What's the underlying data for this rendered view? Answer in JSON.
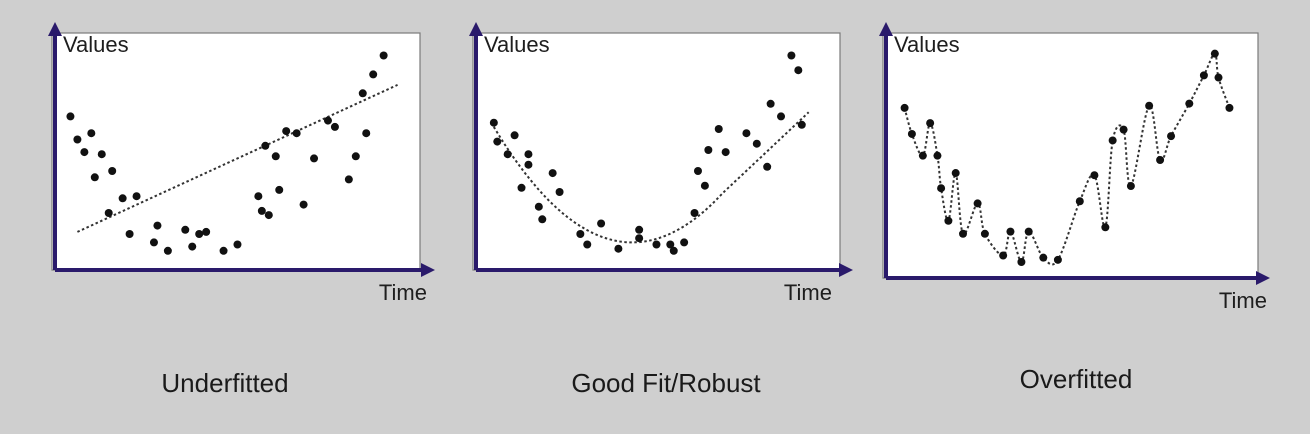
{
  "colors": {
    "background": "#cfcfcf",
    "plot_background": "#ffffff",
    "axis": "#2a1a6b",
    "points": "#111111",
    "fit_line": "#333333"
  },
  "chart_data": [
    {
      "type": "scatter",
      "title": "Underfitted",
      "xlabel": "Time",
      "ylabel": "Values",
      "xlim": [
        0,
        100
      ],
      "ylim": [
        0,
        100
      ],
      "grid": false,
      "fit": {
        "style": "linear",
        "x": [
          5,
          97
        ],
        "y": [
          11,
          81
        ]
      },
      "points": {
        "x": [
          3,
          5,
          7,
          9,
          10,
          12,
          14,
          15,
          18,
          20,
          22,
          27,
          28,
          31,
          36,
          38,
          40,
          42,
          47,
          51,
          57,
          58,
          59,
          60,
          62,
          63,
          65,
          68,
          70,
          73,
          77,
          79,
          83,
          85,
          87,
          88,
          90,
          93
        ],
        "y": [
          66,
          55,
          49,
          58,
          37,
          48,
          20,
          40,
          27,
          10,
          28,
          6,
          14,
          2,
          12,
          4,
          10,
          11,
          2,
          5,
          28,
          21,
          52,
          19,
          47,
          31,
          59,
          58,
          24,
          46,
          64,
          61,
          36,
          47,
          77,
          58,
          86,
          95
        ]
      }
    },
    {
      "type": "scatter",
      "title": "Good Fit/Robust",
      "xlabel": "Time",
      "ylabel": "Values",
      "xlim": [
        0,
        100
      ],
      "ylim": [
        0,
        100
      ],
      "grid": false,
      "fit": {
        "style": "curve"
      },
      "points": {
        "x": [
          4,
          5,
          8,
          10,
          12,
          14,
          14,
          17,
          18,
          21,
          23,
          29,
          31,
          35,
          40,
          46,
          46,
          51,
          55,
          56,
          59,
          62,
          63,
          65,
          66,
          69,
          71,
          77,
          80,
          83,
          84,
          87,
          90,
          92,
          93
        ],
        "y": [
          63,
          54,
          48,
          57,
          32,
          48,
          43,
          23,
          17,
          39,
          30,
          10,
          5,
          15,
          3,
          8,
          12,
          5,
          5,
          2,
          6,
          20,
          40,
          33,
          50,
          60,
          49,
          58,
          53,
          42,
          72,
          66,
          95,
          88,
          62
        ]
      }
    },
    {
      "type": "scatter",
      "title": "Overfitted",
      "xlabel": "Time",
      "ylabel": "Values",
      "xlim": [
        0,
        100
      ],
      "ylim": [
        0,
        100
      ],
      "grid": false,
      "fit": {
        "style": "interpolating"
      },
      "points": {
        "x": [
          4,
          6,
          9,
          11,
          13,
          14,
          16,
          18,
          20,
          24,
          26,
          31,
          33,
          36,
          38,
          42,
          46,
          52,
          56,
          59,
          61,
          64,
          66,
          71,
          74,
          77,
          82,
          86,
          89,
          90,
          93
        ],
        "y": [
          71,
          59,
          49,
          64,
          49,
          34,
          19,
          41,
          13,
          27,
          13,
          3,
          14,
          0,
          14,
          2,
          1,
          28,
          40,
          16,
          56,
          61,
          35,
          72,
          47,
          58,
          73,
          86,
          96,
          85,
          71
        ]
      }
    }
  ]
}
